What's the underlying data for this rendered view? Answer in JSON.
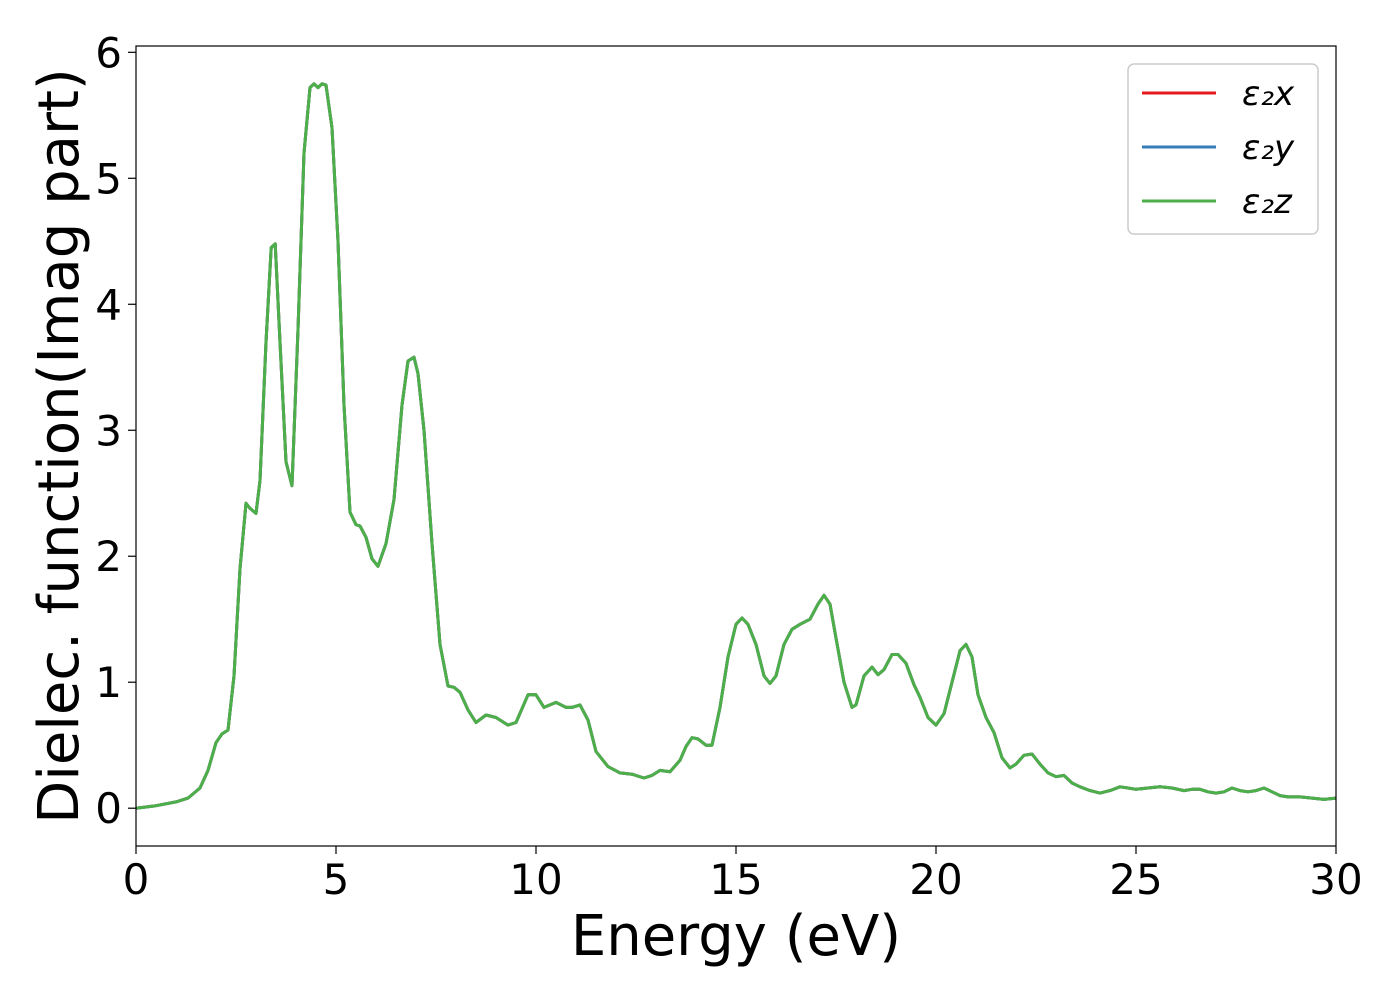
{
  "chart_data": {
    "type": "line",
    "title": "",
    "xlabel": "Energy (eV)",
    "ylabel": "Dielec. function(Imag part)",
    "xlim": [
      0,
      30
    ],
    "ylim": [
      -0.3,
      6.05
    ],
    "xticks": [
      0,
      5,
      10,
      15,
      20,
      25,
      30
    ],
    "yticks": [
      0,
      1,
      2,
      3,
      4,
      5,
      6
    ],
    "grid": false,
    "legend": {
      "position": "top-right"
    },
    "x": [
      0,
      0.5,
      1.0,
      1.3,
      1.6,
      1.8,
      2.0,
      2.15,
      2.3,
      2.45,
      2.6,
      2.75,
      2.85,
      3.0,
      3.1,
      3.25,
      3.38,
      3.48,
      3.6,
      3.75,
      3.9,
      4.05,
      4.2,
      4.35,
      4.45,
      4.55,
      4.65,
      4.75,
      4.9,
      5.05,
      5.2,
      5.35,
      5.5,
      5.6,
      5.75,
      5.9,
      6.05,
      6.25,
      6.45,
      6.65,
      6.8,
      6.95,
      7.05,
      7.2,
      7.4,
      7.6,
      7.8,
      7.95,
      8.1,
      8.3,
      8.5,
      8.75,
      9.0,
      9.3,
      9.5,
      9.8,
      10.0,
      10.2,
      10.5,
      10.75,
      10.9,
      11.1,
      11.3,
      11.5,
      11.8,
      12.1,
      12.4,
      12.7,
      12.9,
      13.1,
      13.35,
      13.6,
      13.75,
      13.9,
      14.05,
      14.25,
      14.4,
      14.6,
      14.8,
      15.0,
      15.15,
      15.3,
      15.5,
      15.7,
      15.85,
      16.0,
      16.2,
      16.4,
      16.6,
      16.85,
      17.05,
      17.2,
      17.35,
      17.5,
      17.7,
      17.9,
      18.0,
      18.2,
      18.4,
      18.55,
      18.7,
      18.9,
      19.05,
      19.25,
      19.45,
      19.6,
      19.8,
      20.0,
      20.2,
      20.4,
      20.6,
      20.75,
      20.9,
      21.05,
      21.25,
      21.45,
      21.65,
      21.85,
      22.0,
      22.2,
      22.4,
      22.6,
      22.8,
      23.0,
      23.2,
      23.4,
      23.6,
      23.85,
      24.1,
      24.35,
      24.6,
      24.8,
      25.0,
      25.3,
      25.6,
      25.9,
      26.2,
      26.4,
      26.6,
      26.8,
      27.0,
      27.2,
      27.4,
      27.6,
      27.8,
      28.0,
      28.2,
      28.4,
      28.6,
      28.8,
      29.1,
      29.4,
      29.7,
      30.0
    ],
    "series": [
      {
        "name": "ε₂x",
        "color": "#e41a1c",
        "values": [
          0.0,
          0.02,
          0.05,
          0.08,
          0.16,
          0.3,
          0.52,
          0.59,
          0.62,
          1.05,
          1.9,
          2.42,
          2.38,
          2.34,
          2.6,
          3.7,
          4.45,
          4.48,
          3.7,
          2.75,
          2.56,
          3.8,
          5.2,
          5.72,
          5.75,
          5.72,
          5.75,
          5.74,
          5.4,
          4.5,
          3.2,
          2.35,
          2.25,
          2.24,
          2.15,
          1.98,
          1.92,
          2.1,
          2.45,
          3.2,
          3.55,
          3.58,
          3.45,
          3.0,
          2.1,
          1.3,
          0.97,
          0.96,
          0.92,
          0.78,
          0.68,
          0.74,
          0.72,
          0.66,
          0.68,
          0.9,
          0.9,
          0.8,
          0.84,
          0.8,
          0.8,
          0.82,
          0.7,
          0.45,
          0.33,
          0.28,
          0.27,
          0.24,
          0.26,
          0.3,
          0.29,
          0.38,
          0.49,
          0.56,
          0.55,
          0.5,
          0.5,
          0.8,
          1.2,
          1.46,
          1.51,
          1.46,
          1.3,
          1.05,
          0.99,
          1.05,
          1.3,
          1.42,
          1.46,
          1.5,
          1.62,
          1.69,
          1.62,
          1.35,
          1.0,
          0.8,
          0.82,
          1.05,
          1.12,
          1.06,
          1.1,
          1.22,
          1.22,
          1.15,
          0.98,
          0.88,
          0.72,
          0.66,
          0.75,
          1.0,
          1.25,
          1.3,
          1.2,
          0.9,
          0.72,
          0.6,
          0.4,
          0.32,
          0.35,
          0.42,
          0.43,
          0.35,
          0.28,
          0.25,
          0.26,
          0.2,
          0.17,
          0.14,
          0.12,
          0.14,
          0.17,
          0.16,
          0.15,
          0.16,
          0.17,
          0.16,
          0.14,
          0.15,
          0.15,
          0.13,
          0.12,
          0.13,
          0.16,
          0.14,
          0.13,
          0.14,
          0.16,
          0.13,
          0.1,
          0.09,
          0.09,
          0.08,
          0.07,
          0.08
        ]
      },
      {
        "name": "ε₂y",
        "color": "#377eb8",
        "values": [
          0.0,
          0.02,
          0.05,
          0.08,
          0.16,
          0.3,
          0.52,
          0.59,
          0.62,
          1.05,
          1.9,
          2.42,
          2.38,
          2.34,
          2.6,
          3.7,
          4.45,
          4.48,
          3.7,
          2.75,
          2.56,
          3.8,
          5.2,
          5.72,
          5.75,
          5.72,
          5.75,
          5.74,
          5.4,
          4.5,
          3.2,
          2.35,
          2.25,
          2.24,
          2.15,
          1.98,
          1.92,
          2.1,
          2.45,
          3.2,
          3.55,
          3.58,
          3.45,
          3.0,
          2.1,
          1.3,
          0.97,
          0.96,
          0.92,
          0.78,
          0.68,
          0.74,
          0.72,
          0.66,
          0.68,
          0.9,
          0.9,
          0.8,
          0.84,
          0.8,
          0.8,
          0.82,
          0.7,
          0.45,
          0.33,
          0.28,
          0.27,
          0.24,
          0.26,
          0.3,
          0.29,
          0.38,
          0.49,
          0.56,
          0.55,
          0.5,
          0.5,
          0.8,
          1.2,
          1.46,
          1.51,
          1.46,
          1.3,
          1.05,
          0.99,
          1.05,
          1.3,
          1.42,
          1.46,
          1.5,
          1.62,
          1.69,
          1.62,
          1.35,
          1.0,
          0.8,
          0.82,
          1.05,
          1.12,
          1.06,
          1.1,
          1.22,
          1.22,
          1.15,
          0.98,
          0.88,
          0.72,
          0.66,
          0.75,
          1.0,
          1.25,
          1.3,
          1.2,
          0.9,
          0.72,
          0.6,
          0.4,
          0.32,
          0.35,
          0.42,
          0.43,
          0.35,
          0.28,
          0.25,
          0.26,
          0.2,
          0.17,
          0.14,
          0.12,
          0.14,
          0.17,
          0.16,
          0.15,
          0.16,
          0.17,
          0.16,
          0.14,
          0.15,
          0.15,
          0.13,
          0.12,
          0.13,
          0.16,
          0.14,
          0.13,
          0.14,
          0.16,
          0.13,
          0.1,
          0.09,
          0.09,
          0.08,
          0.07,
          0.08
        ]
      },
      {
        "name": "ε₂z",
        "color": "#4daf4a",
        "values": [
          0.0,
          0.02,
          0.05,
          0.08,
          0.16,
          0.3,
          0.52,
          0.59,
          0.62,
          1.05,
          1.9,
          2.42,
          2.38,
          2.34,
          2.6,
          3.7,
          4.45,
          4.48,
          3.7,
          2.75,
          2.56,
          3.8,
          5.2,
          5.72,
          5.75,
          5.72,
          5.75,
          5.74,
          5.4,
          4.5,
          3.2,
          2.35,
          2.25,
          2.24,
          2.15,
          1.98,
          1.92,
          2.1,
          2.45,
          3.2,
          3.55,
          3.58,
          3.45,
          3.0,
          2.1,
          1.3,
          0.97,
          0.96,
          0.92,
          0.78,
          0.68,
          0.74,
          0.72,
          0.66,
          0.68,
          0.9,
          0.9,
          0.8,
          0.84,
          0.8,
          0.8,
          0.82,
          0.7,
          0.45,
          0.33,
          0.28,
          0.27,
          0.24,
          0.26,
          0.3,
          0.29,
          0.38,
          0.49,
          0.56,
          0.55,
          0.5,
          0.5,
          0.8,
          1.2,
          1.46,
          1.51,
          1.46,
          1.3,
          1.05,
          0.99,
          1.05,
          1.3,
          1.42,
          1.46,
          1.5,
          1.62,
          1.69,
          1.62,
          1.35,
          1.0,
          0.8,
          0.82,
          1.05,
          1.12,
          1.06,
          1.1,
          1.22,
          1.22,
          1.15,
          0.98,
          0.88,
          0.72,
          0.66,
          0.75,
          1.0,
          1.25,
          1.3,
          1.2,
          0.9,
          0.72,
          0.6,
          0.4,
          0.32,
          0.35,
          0.42,
          0.43,
          0.35,
          0.28,
          0.25,
          0.26,
          0.2,
          0.17,
          0.14,
          0.12,
          0.14,
          0.17,
          0.16,
          0.15,
          0.16,
          0.17,
          0.16,
          0.14,
          0.15,
          0.15,
          0.13,
          0.12,
          0.13,
          0.16,
          0.14,
          0.13,
          0.14,
          0.16,
          0.13,
          0.1,
          0.09,
          0.09,
          0.08,
          0.07,
          0.08
        ]
      }
    ]
  }
}
